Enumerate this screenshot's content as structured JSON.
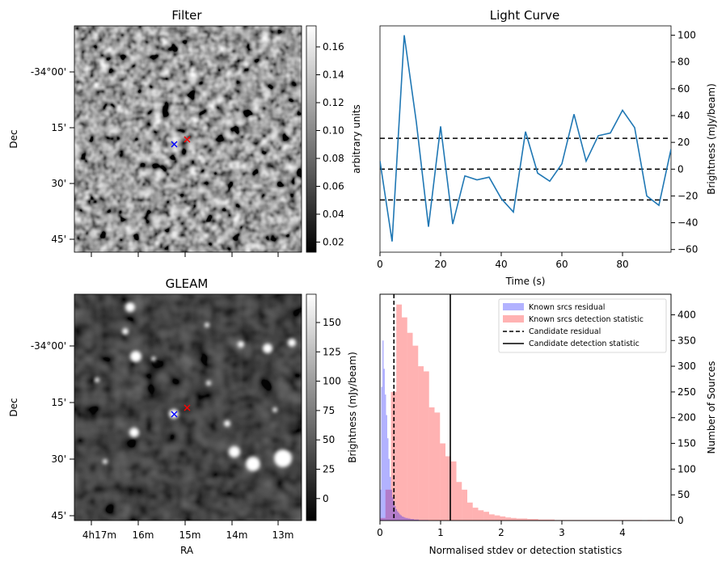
{
  "filter_panel": {
    "title": "Filter",
    "ylabel": "Dec",
    "dec_ticks": [
      "-34°00'",
      "15'",
      "30'",
      "45'"
    ],
    "colorbar": {
      "label": "arbitrary units",
      "ticks": [
        "0.16",
        "0.14",
        "0.12",
        "0.10",
        "0.08",
        "0.06",
        "0.04",
        "0.02"
      ],
      "colormap": "gray"
    }
  },
  "gleam_panel": {
    "title": "GLEAM",
    "ylabel": "Dec",
    "xlabel": "RA",
    "dec_ticks": [
      "-34°00'",
      "15'",
      "30'",
      "45'"
    ],
    "ra_ticks": [
      "4h17m",
      "16m",
      "15m",
      "14m",
      "13m"
    ],
    "colorbar": {
      "label": "Brightness (mJy/beam)",
      "ticks": [
        "150",
        "125",
        "100",
        "75",
        "50",
        "25",
        "0"
      ],
      "colormap": "gray"
    }
  },
  "markers": {
    "blue": "#0000ff",
    "red": "#ff0000"
  },
  "chart_data": [
    {
      "type": "line",
      "title": "Light Curve",
      "xlabel": "Time (s)",
      "ylabel": "Brightness (mJy/beam)",
      "x_ticks": [
        0,
        20,
        40,
        60,
        80
      ],
      "y_ticks": [
        100,
        80,
        60,
        40,
        20,
        0,
        -20,
        -40,
        -60
      ],
      "xlim": [
        0,
        96
      ],
      "ylim": [
        -62,
        107
      ],
      "color": "#1f77b4",
      "x": [
        0,
        4,
        8,
        12,
        16,
        20,
        24,
        28,
        32,
        36,
        40,
        44,
        48,
        52,
        56,
        60,
        64,
        68,
        72,
        76,
        80,
        84,
        88,
        92,
        96
      ],
      "y": [
        6,
        -54,
        100,
        35,
        -43,
        32,
        -41,
        -5,
        -8,
        -6,
        -22,
        -32,
        28,
        -3,
        -9,
        4,
        41,
        6,
        25,
        27,
        44,
        31,
        -20,
        -27,
        15
      ],
      "hlines": [
        23,
        0,
        -23
      ],
      "hline_style": "dashed"
    },
    {
      "type": "histogram",
      "xlabel": "Normalised stdev or detection statistics",
      "ylabel": "Number of Sources",
      "x_ticks": [
        0,
        1,
        2,
        3,
        4
      ],
      "y_ticks": [
        0,
        50,
        100,
        150,
        200,
        250,
        300,
        350,
        400
      ],
      "xlim": [
        0,
        4.8
      ],
      "ylim": [
        0,
        440
      ],
      "legend_position": "top-right",
      "bin_width": 0.09,
      "series": [
        {
          "name": "Known srcs residual",
          "color": "#0000ff",
          "alpha": 0.3,
          "bins_start": 0.0,
          "bin_width": 0.02,
          "counts": [
            60,
            260,
            350,
            295,
            245,
            205,
            160,
            120,
            85,
            60,
            45,
            35,
            28,
            22,
            18,
            15,
            12,
            10,
            8,
            7,
            6,
            5,
            5,
            4,
            4,
            3,
            3,
            3,
            2,
            2,
            2,
            2,
            1,
            1,
            1,
            1,
            1,
            1,
            1,
            1
          ]
        },
        {
          "name": "Known srcs detection statistic",
          "color": "#ff0000",
          "alpha": 0.3,
          "bins_start": 0.0,
          "bin_width": 0.09,
          "counts": [
            5,
            60,
            250,
            420,
            395,
            365,
            340,
            300,
            290,
            220,
            210,
            150,
            125,
            115,
            75,
            60,
            35,
            25,
            20,
            17,
            12,
            10,
            8,
            6,
            5,
            4,
            4,
            3,
            3,
            2,
            2,
            2,
            1,
            1,
            1,
            1,
            1,
            1,
            1,
            1,
            1,
            1,
            1,
            1,
            1,
            1,
            1,
            1,
            0,
            1,
            1,
            1,
            0
          ]
        }
      ],
      "vlines": [
        {
          "name": "Candidate residual",
          "x": 0.23,
          "style": "dashed"
        },
        {
          "name": "Candidate detection statistic",
          "x": 1.16,
          "style": "solid"
        }
      ]
    }
  ]
}
